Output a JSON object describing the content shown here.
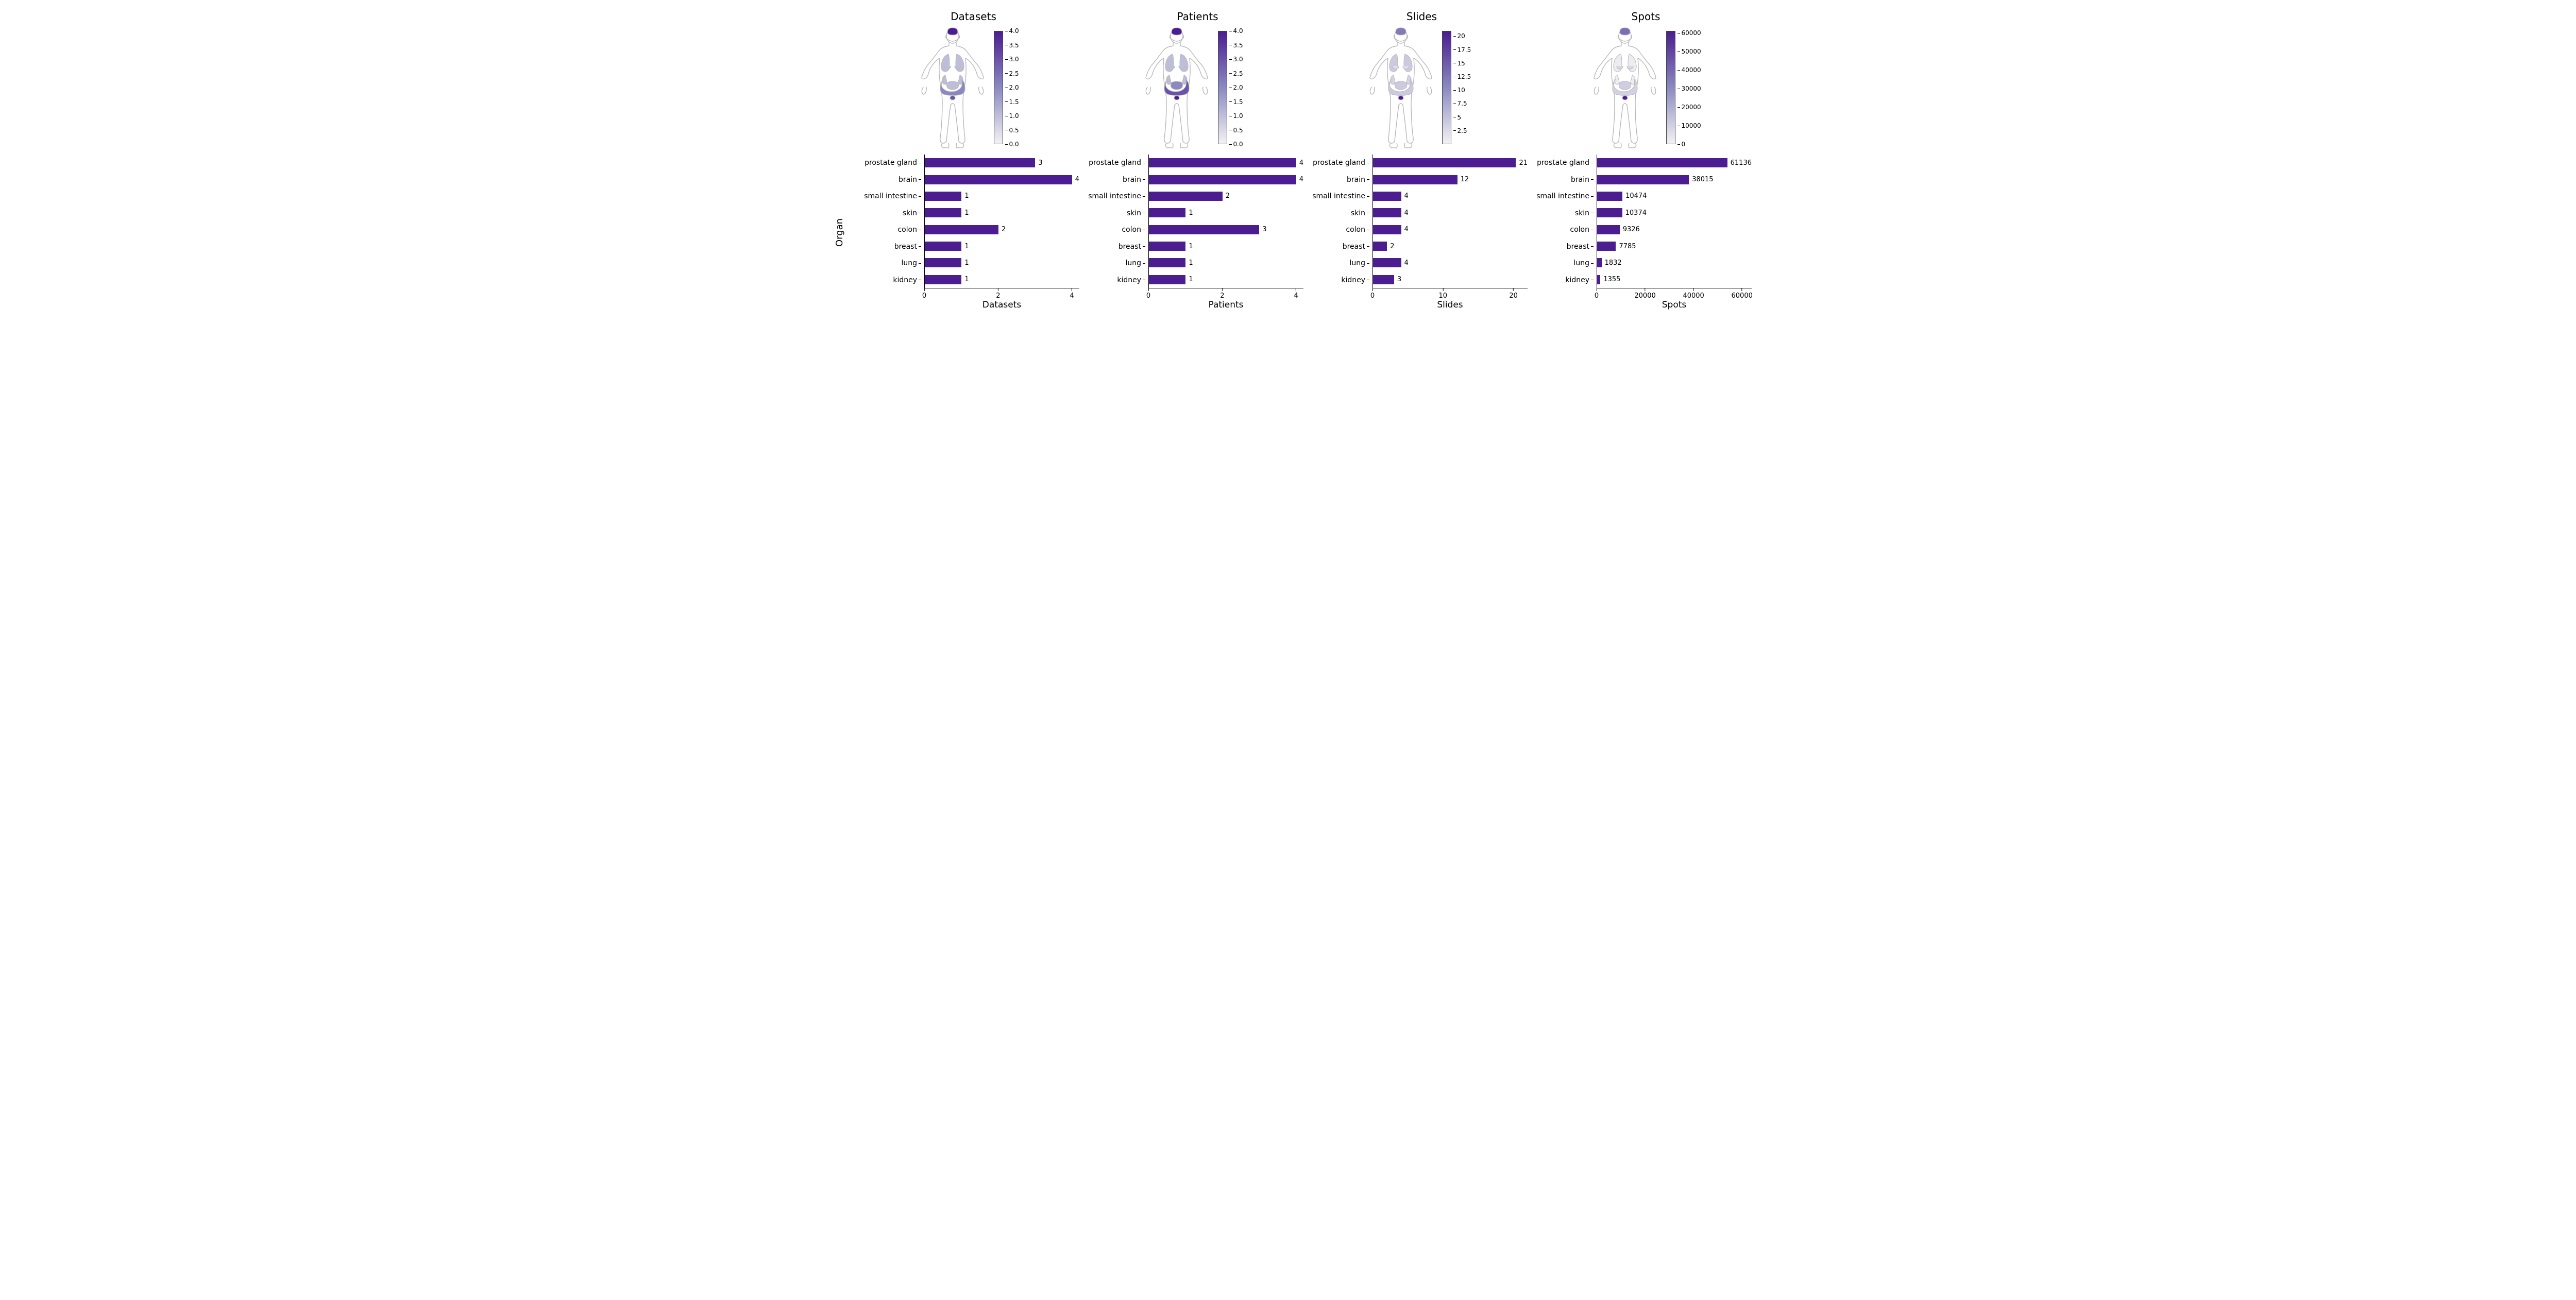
{
  "ylabel": "Organ",
  "bar_color": "#4b1d91",
  "body_outline": "#b8b8b8",
  "cmap_low": "#f2f2f4",
  "cmap_mid": "#8b89c0",
  "cmap_high": "#4b1d91",
  "label_fontsize": 17,
  "title_fontsize": 20,
  "tick_fontsize": 13,
  "organs": [
    "prostate gland",
    "brain",
    "small intestine",
    "skin",
    "colon",
    "breast",
    "lung",
    "kidney"
  ],
  "panels": [
    {
      "title": "Datasets",
      "xlabel": "Datasets",
      "values": {
        "prostate gland": 3,
        "brain": 4,
        "small intestine": 1,
        "skin": 1,
        "colon": 2,
        "breast": 1,
        "lung": 1,
        "kidney": 1
      },
      "xmax": 4.2,
      "xticks": [
        0,
        2,
        4
      ],
      "cbar_max": 4.0,
      "cbar_ticks": [
        0.0,
        0.5,
        1.0,
        1.5,
        2.0,
        2.5,
        3.0,
        3.5,
        4.0
      ]
    },
    {
      "title": "Patients",
      "xlabel": "Patients",
      "values": {
        "prostate gland": 4,
        "brain": 4,
        "small intestine": 2,
        "skin": 1,
        "colon": 3,
        "breast": 1,
        "lung": 1,
        "kidney": 1
      },
      "xmax": 4.2,
      "xticks": [
        0,
        2,
        4
      ],
      "cbar_max": 4.0,
      "cbar_ticks": [
        0.0,
        0.5,
        1.0,
        1.5,
        2.0,
        2.5,
        3.0,
        3.5,
        4.0
      ]
    },
    {
      "title": "Slides",
      "xlabel": "Slides",
      "values": {
        "prostate gland": 21,
        "brain": 12,
        "small intestine": 4,
        "skin": 4,
        "colon": 4,
        "breast": 2,
        "lung": 4,
        "kidney": 3
      },
      "xmax": 22,
      "xticks": [
        0,
        10,
        20
      ],
      "cbar_max": 21,
      "cbar_ticks": [
        2.5,
        5.0,
        7.5,
        10.0,
        12.5,
        15.0,
        17.5,
        20.0
      ]
    },
    {
      "title": "Spots",
      "xlabel": "Spots",
      "values": {
        "prostate gland": 61136,
        "brain": 38015,
        "small intestine": 10474,
        "skin": 10374,
        "colon": 9326,
        "breast": 7785,
        "lung": 1832,
        "kidney": 1355
      },
      "xmax": 64000,
      "xticks": [
        0,
        20000,
        40000,
        60000
      ],
      "cbar_max": 61136,
      "cbar_ticks": [
        0,
        10000,
        20000,
        30000,
        40000,
        50000,
        60000
      ]
    }
  ]
}
